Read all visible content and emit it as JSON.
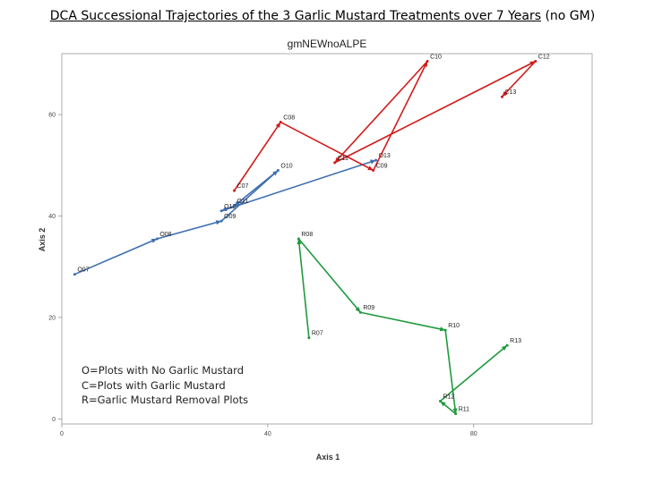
{
  "slide": {
    "title_main": "DCA Successional Trajectories of the 3 Garlic Mustard Treatments over 7 Years",
    "title_suffix": " (no GM)"
  },
  "legend": [
    "O=Plots with No Garlic Mustard",
    "C=Plots with Garlic Mustard",
    "R=Garlic Mustard Removal Plots"
  ],
  "chart_data": {
    "type": "line",
    "title": "gmNEWnoALPE",
    "xlabel": "Axis 1",
    "ylabel": "Axis 2",
    "xlim": [
      0,
      103
    ],
    "ylim": [
      -1,
      72
    ],
    "xticks": [
      0,
      40,
      80
    ],
    "yticks": [
      0,
      20,
      40,
      60
    ],
    "grid": false,
    "colors": {
      "O": "#3d6fb0",
      "C": "#d21a1a",
      "R": "#1f9a3e"
    },
    "series": [
      {
        "key": "O",
        "points": [
          {
            "label": "O07",
            "x": 2.5,
            "y": 28.5
          },
          {
            "label": "O08",
            "x": 18.5,
            "y": 35.5
          },
          {
            "label": "O09",
            "x": 31,
            "y": 39
          },
          {
            "label": "O10",
            "x": 42,
            "y": 49
          },
          {
            "label": "O11",
            "x": 33.5,
            "y": 42
          },
          {
            "label": "O12",
            "x": 31,
            "y": 41
          },
          {
            "label": "O13",
            "x": 61,
            "y": 51
          }
        ]
      },
      {
        "key": "C",
        "points": [
          {
            "label": "C07",
            "x": 33.5,
            "y": 45
          },
          {
            "label": "C08",
            "x": 42.5,
            "y": 58.5
          },
          {
            "label": "C09",
            "x": 60.5,
            "y": 49
          },
          {
            "label": "C10",
            "x": 71,
            "y": 70.5
          },
          {
            "label": "C11",
            "x": 53,
            "y": 50.5
          },
          {
            "label": "C12",
            "x": 92,
            "y": 70.5
          },
          {
            "label": "C13",
            "x": 85.5,
            "y": 63.5
          }
        ]
      },
      {
        "key": "R",
        "points": [
          {
            "label": "R07",
            "x": 48,
            "y": 16
          },
          {
            "label": "R08",
            "x": 46,
            "y": 35.5
          },
          {
            "label": "R09",
            "x": 58,
            "y": 21
          },
          {
            "label": "R10",
            "x": 74.5,
            "y": 17.5
          },
          {
            "label": "R11",
            "x": 76.5,
            "y": 1
          },
          {
            "label": "R12",
            "x": 73.5,
            "y": 3.5
          },
          {
            "label": "R13",
            "x": 86.5,
            "y": 14.5
          }
        ]
      }
    ]
  }
}
